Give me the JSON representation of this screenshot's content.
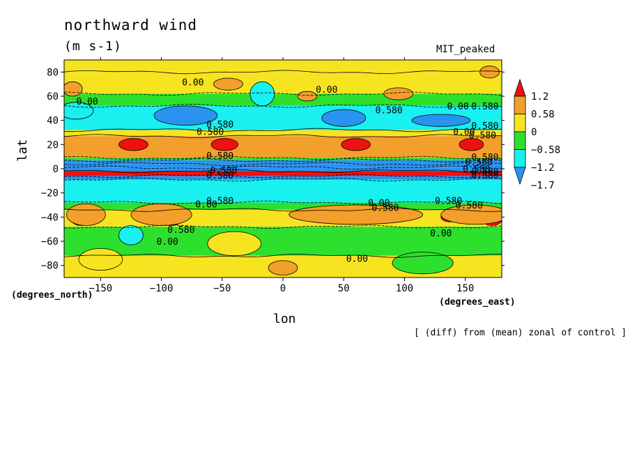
{
  "title": "northward wind",
  "units": "(m s-1)",
  "run_label": "MIT_peaked",
  "note": "[ (diff) from (mean) zonal of control ]",
  "colors": {
    "red": "#ee1111",
    "orange": "#f29f2b",
    "yellow": "#f7e420",
    "green": "#2ee02e",
    "cyan": "#19f0f0",
    "blue": "#2a93f0",
    "contour": "#000000"
  },
  "chart_data": {
    "type": "heatmap",
    "xlabel": "lon",
    "ylabel": "lat",
    "x_units": "(degrees_east)",
    "y_units": "(degrees_north)",
    "xlim": [
      -180,
      180
    ],
    "ylim": [
      -90,
      90
    ],
    "x_ticks": [
      -150,
      -100,
      -50,
      0,
      50,
      100,
      150
    ],
    "y_ticks": [
      80,
      60,
      40,
      20,
      0,
      -20,
      -40,
      -60,
      -80
    ],
    "colorbar": {
      "levels": [
        1.2,
        0.58,
        0,
        -0.58,
        -1.2,
        -1.7
      ],
      "labels": [
        "1.2",
        "0.58",
        "0",
        "−0.58",
        "−1.2",
        "−1.7"
      ],
      "bins": [
        "red",
        "orange",
        "yellow",
        "green",
        "cyan",
        "blue"
      ]
    },
    "zonal_bands": [
      {
        "lat_top": 90,
        "lat_bottom": 80,
        "value": 0.3
      },
      {
        "lat_top": 80,
        "lat_bottom": 62,
        "value": 0.2
      },
      {
        "lat_top": 62,
        "lat_bottom": 52,
        "value": -0.2
      },
      {
        "lat_top": 52,
        "lat_bottom": 32,
        "value": -0.9
      },
      {
        "lat_top": 32,
        "lat_bottom": 27,
        "value": 0.3
      },
      {
        "lat_top": 27,
        "lat_bottom": 9,
        "value": 0.8
      },
      {
        "lat_top": 9,
        "lat_bottom": 7,
        "value": -0.3
      },
      {
        "lat_top": 7,
        "lat_bottom": 4,
        "value": -1.5
      },
      {
        "lat_top": 4,
        "lat_bottom": 1,
        "value": -2.0
      },
      {
        "lat_top": 1,
        "lat_bottom": -2,
        "value": -1.3
      },
      {
        "lat_top": -2,
        "lat_bottom": -6,
        "value": 1.8
      },
      {
        "lat_top": -6,
        "lat_bottom": -9,
        "value": -1.5
      },
      {
        "lat_top": -9,
        "lat_bottom": -28,
        "value": -1.0
      },
      {
        "lat_top": -28,
        "lat_bottom": -34,
        "value": -0.3
      },
      {
        "lat_top": -34,
        "lat_bottom": -48,
        "value": 0.4
      },
      {
        "lat_top": -48,
        "lat_bottom": -72,
        "value": -0.2
      },
      {
        "lat_top": -72,
        "lat_bottom": -90,
        "value": 0.2
      }
    ],
    "features": [
      {
        "lon": -123,
        "lat": 20,
        "rx": 12,
        "ry": 5,
        "value": 1.6
      },
      {
        "lon": -48,
        "lat": 20,
        "rx": 11,
        "ry": 5,
        "value": 1.6
      },
      {
        "lon": 60,
        "lat": 20,
        "rx": 12,
        "ry": 5,
        "value": 1.6
      },
      {
        "lon": 155,
        "lat": 20,
        "rx": 10,
        "ry": 5,
        "value": 1.6
      },
      {
        "lon": -166,
        "lat": -42,
        "rx": 8,
        "ry": 5,
        "value": 1.6
      },
      {
        "lon": -92,
        "lat": -42,
        "rx": 9,
        "ry": 5,
        "value": 1.6
      },
      {
        "lon": 138,
        "lat": -40,
        "rx": 8,
        "ry": 4,
        "value": 1.5
      },
      {
        "lon": 172,
        "lat": -42,
        "rx": 8,
        "ry": 5,
        "value": 1.6
      },
      {
        "lon": -100,
        "lat": -38,
        "rx": 25,
        "ry": 9,
        "value": 0.8
      },
      {
        "lon": -162,
        "lat": -38,
        "rx": 16,
        "ry": 9,
        "value": 0.8
      },
      {
        "lon": 60,
        "lat": -38,
        "rx": 55,
        "ry": 8,
        "value": 0.8
      },
      {
        "lon": 158,
        "lat": -38,
        "rx": 28,
        "ry": 8,
        "value": 0.8
      },
      {
        "lon": -173,
        "lat": 66,
        "rx": 8,
        "ry": 6,
        "value": 0.8
      },
      {
        "lon": -45,
        "lat": 70,
        "rx": 12,
        "ry": 5,
        "value": 0.8
      },
      {
        "lon": 20,
        "lat": 60,
        "rx": 8,
        "ry": 4,
        "value": 0.8
      },
      {
        "lon": 95,
        "lat": 62,
        "rx": 12,
        "ry": 5,
        "value": 0.8
      },
      {
        "lon": 170,
        "lat": 80,
        "rx": 8,
        "ry": 5,
        "value": 0.8
      },
      {
        "lon": 0,
        "lat": -82,
        "rx": 12,
        "ry": 6,
        "value": 0.8
      },
      {
        "lon": -170,
        "lat": 48,
        "rx": 14,
        "ry": 7,
        "value": -0.9
      },
      {
        "lon": -80,
        "lat": 44,
        "rx": 26,
        "ry": 8,
        "value": -1.3
      },
      {
        "lon": 50,
        "lat": 42,
        "rx": 18,
        "ry": 7,
        "value": -1.3
      },
      {
        "lon": 130,
        "lat": 40,
        "rx": 24,
        "ry": 5,
        "value": -1.3
      },
      {
        "lon": -17,
        "lat": 62,
        "rx": 10,
        "ry": 10,
        "value": -0.9
      },
      {
        "lon": -125,
        "lat": -55,
        "rx": 10,
        "ry": 8,
        "value": -0.9
      },
      {
        "lon": 115,
        "lat": -78,
        "rx": 25,
        "ry": 9,
        "value": -0.3
      },
      {
        "lon": -40,
        "lat": -62,
        "rx": 22,
        "ry": 10,
        "value": 0.2
      },
      {
        "lon": -150,
        "lat": -75,
        "rx": 18,
        "ry": 9,
        "value": 0.3
      }
    ],
    "contour_labels": [
      {
        "text": "0.00",
        "lon": -83,
        "lat": 69
      },
      {
        "text": "0.00",
        "lon": 27,
        "lat": 63
      },
      {
        "text": "0.00",
        "lon": -170,
        "lat": 53
      },
      {
        "text": "0.580",
        "lon": 76,
        "lat": 46
      },
      {
        "text": "0.00",
        "lon": 135,
        "lat": 49
      },
      {
        "text": "0.580",
        "lon": 155,
        "lat": 49
      },
      {
        "text": "0.580",
        "lon": -63,
        "lat": 34
      },
      {
        "text": "0.580",
        "lon": 155,
        "lat": 33
      },
      {
        "text": "0.580",
        "lon": -71,
        "lat": 28
      },
      {
        "text": "0.00",
        "lon": 140,
        "lat": 28
      },
      {
        "text": "0.580",
        "lon": 153,
        "lat": 25
      },
      {
        "text": "0.580",
        "lon": -63,
        "lat": 8
      },
      {
        "text": "0.580",
        "lon": 155,
        "lat": 7
      },
      {
        "text": "0.580",
        "lon": 150,
        "lat": 3
      },
      {
        "text": "0.580",
        "lon": 148,
        "lat": -3
      },
      {
        "text": "0.580",
        "lon": -60,
        "lat": -4
      },
      {
        "text": "0.580",
        "lon": -63,
        "lat": -8
      },
      {
        "text": "0.580",
        "lon": 155,
        "lat": -5
      },
      {
        "text": "0.580",
        "lon": 155,
        "lat": -8
      },
      {
        "text": "0.580",
        "lon": -63,
        "lat": -29
      },
      {
        "text": "0.00",
        "lon": -72,
        "lat": -32
      },
      {
        "text": "0.580",
        "lon": 125,
        "lat": -29
      },
      {
        "text": "0.580",
        "lon": 142,
        "lat": -33
      },
      {
        "text": "0.00",
        "lon": 70,
        "lat": -31
      },
      {
        "text": "0.580",
        "lon": 73,
        "lat": -35
      },
      {
        "text": "0.580",
        "lon": -95,
        "lat": -53
      },
      {
        "text": "0.00",
        "lon": -104,
        "lat": -63
      },
      {
        "text": "0.00",
        "lon": 121,
        "lat": -56
      },
      {
        "text": "0.00",
        "lon": 52,
        "lat": -77
      }
    ]
  }
}
